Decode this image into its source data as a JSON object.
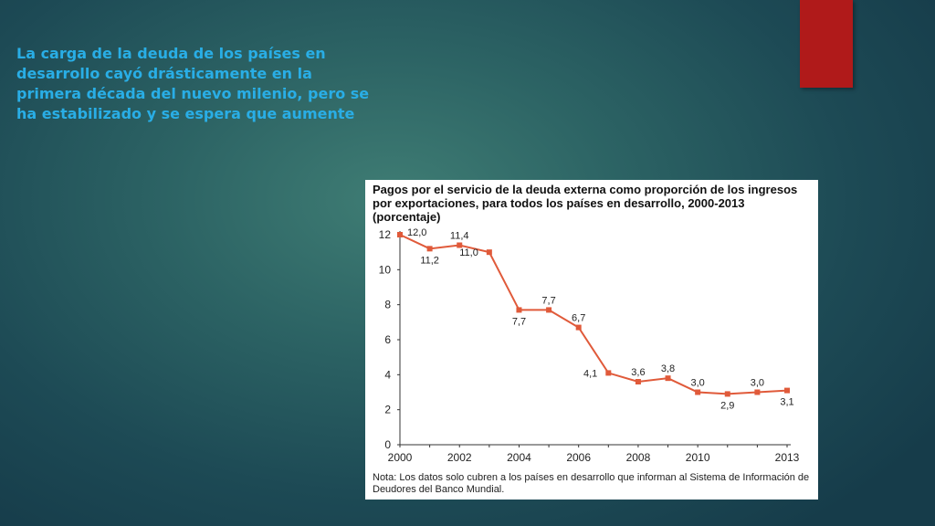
{
  "slide": {
    "title": "La carga de la deuda de los países en desarrollo cayó drásticamente en la primera década del nuevo milenio, pero se ha estabilizado y se espera que aumente",
    "accent_color": "#b01a1a",
    "title_color": "#29aee6"
  },
  "chart_data": {
    "type": "line",
    "title": "Pagos por el servicio de la deuda externa como proporción de los ingresos por exportaciones, para todos los países en desarrollo, 2000-2013 (porcentaje)",
    "note": "Nota: Los datos solo cubren a los países en desarrollo que informan al Sistema de Información de Deudores del Banco Mundial.",
    "x": [
      2000,
      2001,
      2002,
      2003,
      2004,
      2005,
      2006,
      2007,
      2008,
      2009,
      2010,
      2011,
      2012,
      2013
    ],
    "series": [
      {
        "values": [
          12.0,
          11.2,
          11.4,
          11.0,
          7.7,
          7.7,
          6.7,
          4.1,
          3.6,
          3.8,
          3.0,
          2.9,
          3.0,
          3.1
        ],
        "data_labels": [
          "12,0",
          "11,2",
          "11,4",
          "11,0",
          "7,7",
          "7,7",
          "6,7",
          "4,1",
          "3,6",
          "3,8",
          "3,0",
          "2,9",
          "3,0",
          "3,1"
        ],
        "color": "#e05a3a"
      }
    ],
    "xlim": [
      2000,
      2013
    ],
    "ylim": [
      0,
      12
    ],
    "x_ticks": [
      2000,
      2002,
      2004,
      2006,
      2008,
      2010,
      2013
    ],
    "y_ticks": [
      0,
      2,
      4,
      6,
      8,
      10,
      12
    ],
    "grid": false
  }
}
